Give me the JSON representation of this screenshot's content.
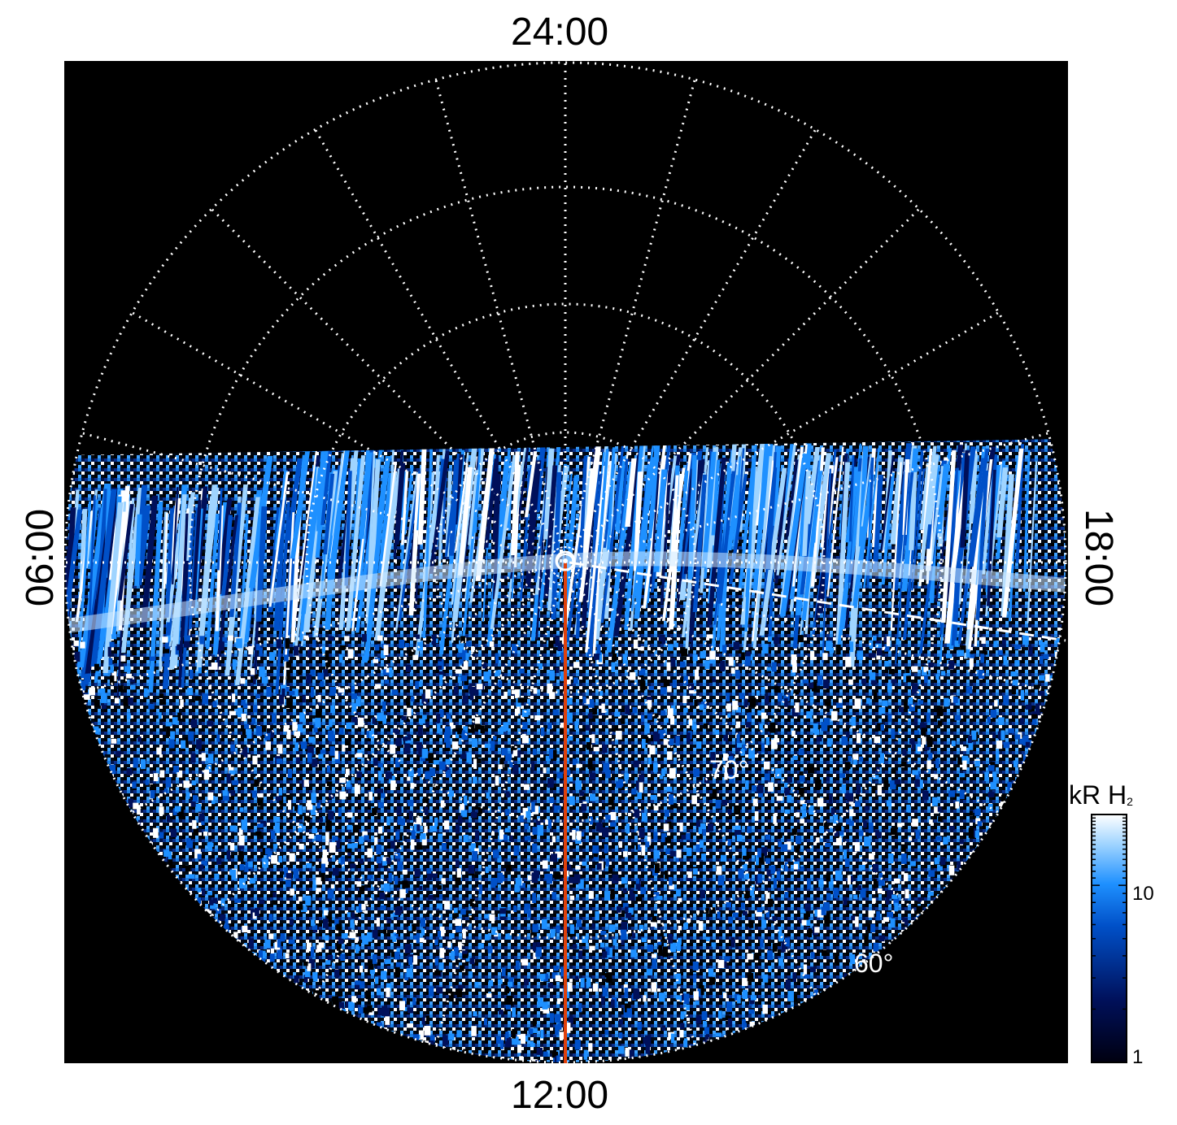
{
  "labels": {
    "top": "24:00",
    "bottom": "12:00",
    "left": "06:00",
    "right": "18:00"
  },
  "latitude_labels": [
    "70°",
    "60°"
  ],
  "colorbar": {
    "title": "kR H",
    "title_subscript": "2",
    "ticks": [
      "10",
      "1"
    ],
    "colors": [
      "#000010",
      "#00105a",
      "#0050c8",
      "#1e90ff",
      "#9fd4ff",
      "#ffffff"
    ]
  },
  "colors": {
    "background": "#000000",
    "grid": "#ffffff",
    "meridian": "#e0400a"
  }
}
